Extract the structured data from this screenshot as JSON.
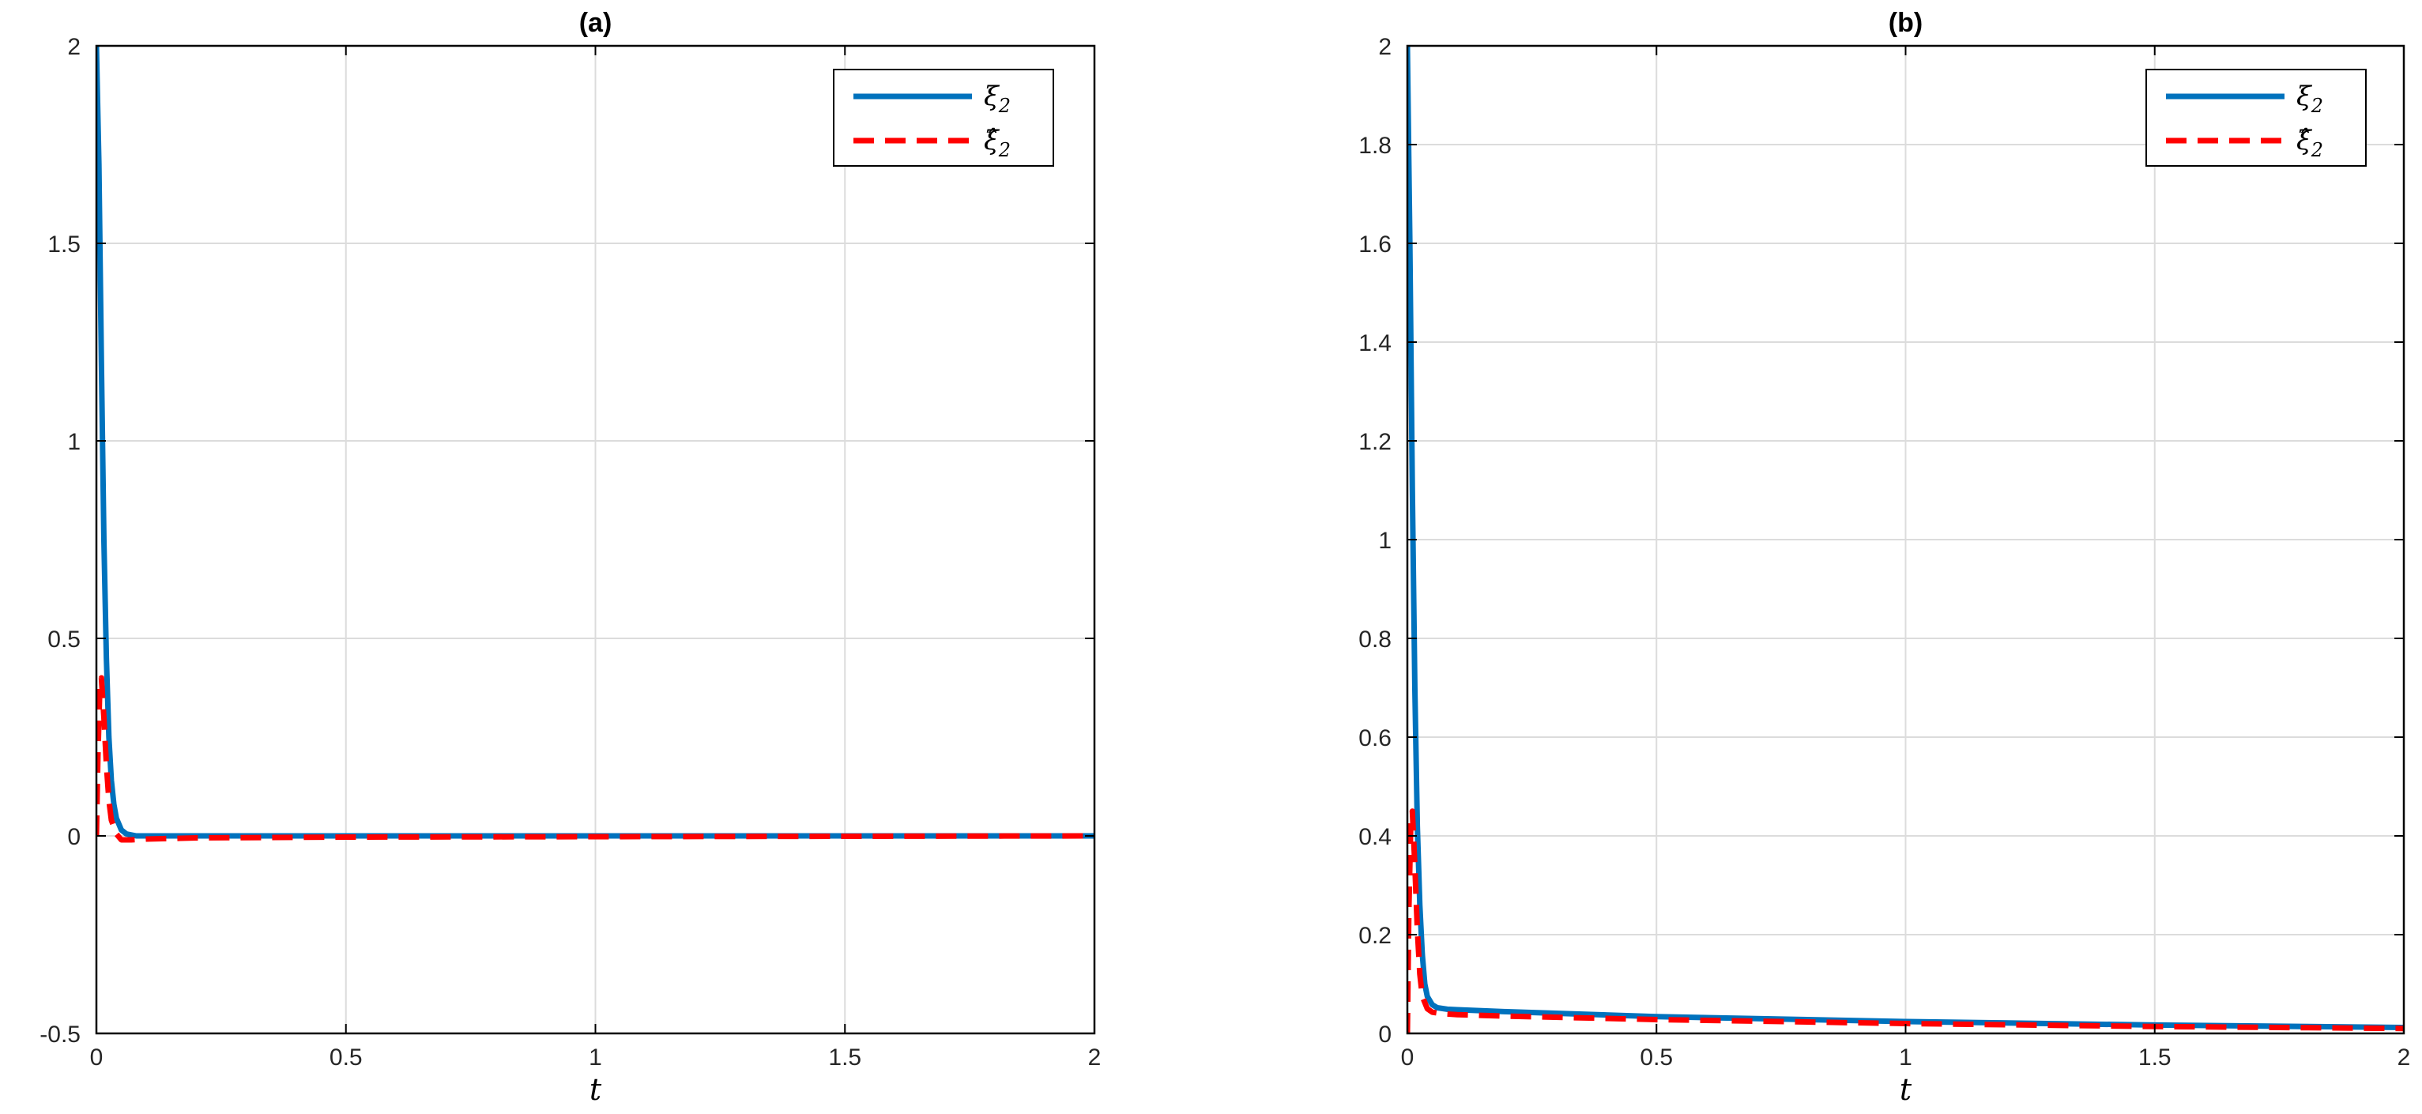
{
  "chart_data": [
    {
      "type": "line",
      "title": "(a)",
      "xlabel": "t",
      "ylabel": "",
      "xlim": [
        0,
        2
      ],
      "ylim": [
        -0.5,
        2
      ],
      "xticks": [
        0,
        0.5,
        1,
        1.5,
        2
      ],
      "xtick_labels": [
        "0",
        "0.5",
        "1",
        "1.5",
        "2"
      ],
      "yticks": [
        -0.5,
        0,
        0.5,
        1,
        1.5,
        2
      ],
      "ytick_labels": [
        "-0.5",
        "0",
        "0.5",
        "1",
        "1.5",
        "2"
      ],
      "grid": true,
      "legend_position": "top-right",
      "series": [
        {
          "name": "ξ",
          "name_sub": "2",
          "style": "solid",
          "color": "#0072BD",
          "x": [
            0,
            0.005,
            0.01,
            0.015,
            0.02,
            0.025,
            0.03,
            0.035,
            0.04,
            0.05,
            0.06,
            0.08,
            0.1,
            0.2,
            0.5,
            1,
            1.5,
            2
          ],
          "y": [
            2,
            1.7,
            1.2,
            0.75,
            0.45,
            0.25,
            0.14,
            0.08,
            0.045,
            0.015,
            0.005,
            0.0,
            0.0,
            0.0,
            0.0,
            0.0,
            0.0,
            0.0
          ]
        },
        {
          "name": "ξ̂",
          "name_sub": "2",
          "style": "dashed",
          "color": "#FF0000",
          "x": [
            0,
            0.003,
            0.007,
            0.01,
            0.015,
            0.02,
            0.025,
            0.03,
            0.04,
            0.05,
            0.07,
            0.1,
            0.2,
            0.5,
            1,
            1.5,
            2
          ],
          "y": [
            0,
            0.2,
            0.38,
            0.4,
            0.3,
            0.18,
            0.09,
            0.04,
            0.005,
            -0.01,
            -0.01,
            -0.008,
            -0.005,
            -0.003,
            -0.002,
            -0.001,
            0
          ]
        }
      ]
    },
    {
      "type": "line",
      "title": "(b)",
      "xlabel": "t",
      "ylabel": "",
      "xlim": [
        0,
        2
      ],
      "ylim": [
        0,
        2
      ],
      "xticks": [
        0,
        0.5,
        1,
        1.5,
        2
      ],
      "xtick_labels": [
        "0",
        "0.5",
        "1",
        "1.5",
        "2"
      ],
      "yticks": [
        0,
        0.2,
        0.4,
        0.6,
        0.8,
        1,
        1.2,
        1.4,
        1.6,
        1.8,
        2
      ],
      "ytick_labels": [
        "0",
        "0.2",
        "0.4",
        "0.6",
        "0.8",
        "1",
        "1.2",
        "1.4",
        "1.6",
        "1.8",
        "2"
      ],
      "grid": true,
      "legend_position": "top-right",
      "series": [
        {
          "name": "ξ",
          "name_sub": "2",
          "style": "solid",
          "color": "#0072BD",
          "x": [
            0,
            0.005,
            0.01,
            0.015,
            0.02,
            0.025,
            0.03,
            0.035,
            0.04,
            0.05,
            0.06,
            0.08,
            0.1,
            0.2,
            0.5,
            1,
            1.5,
            2
          ],
          "y": [
            2,
            1.6,
            1.1,
            0.7,
            0.42,
            0.26,
            0.16,
            0.1,
            0.075,
            0.058,
            0.052,
            0.049,
            0.048,
            0.044,
            0.034,
            0.024,
            0.017,
            0.012
          ]
        },
        {
          "name": "ξ̂",
          "name_sub": "2",
          "style": "dashed",
          "color": "#FF0000",
          "x": [
            0,
            0.003,
            0.007,
            0.01,
            0.015,
            0.02,
            0.025,
            0.03,
            0.04,
            0.05,
            0.07,
            0.1,
            0.2,
            0.5,
            1,
            1.5,
            2
          ],
          "y": [
            0,
            0.25,
            0.43,
            0.45,
            0.34,
            0.21,
            0.12,
            0.075,
            0.05,
            0.043,
            0.04,
            0.038,
            0.035,
            0.028,
            0.02,
            0.014,
            0.01
          ]
        }
      ]
    }
  ]
}
